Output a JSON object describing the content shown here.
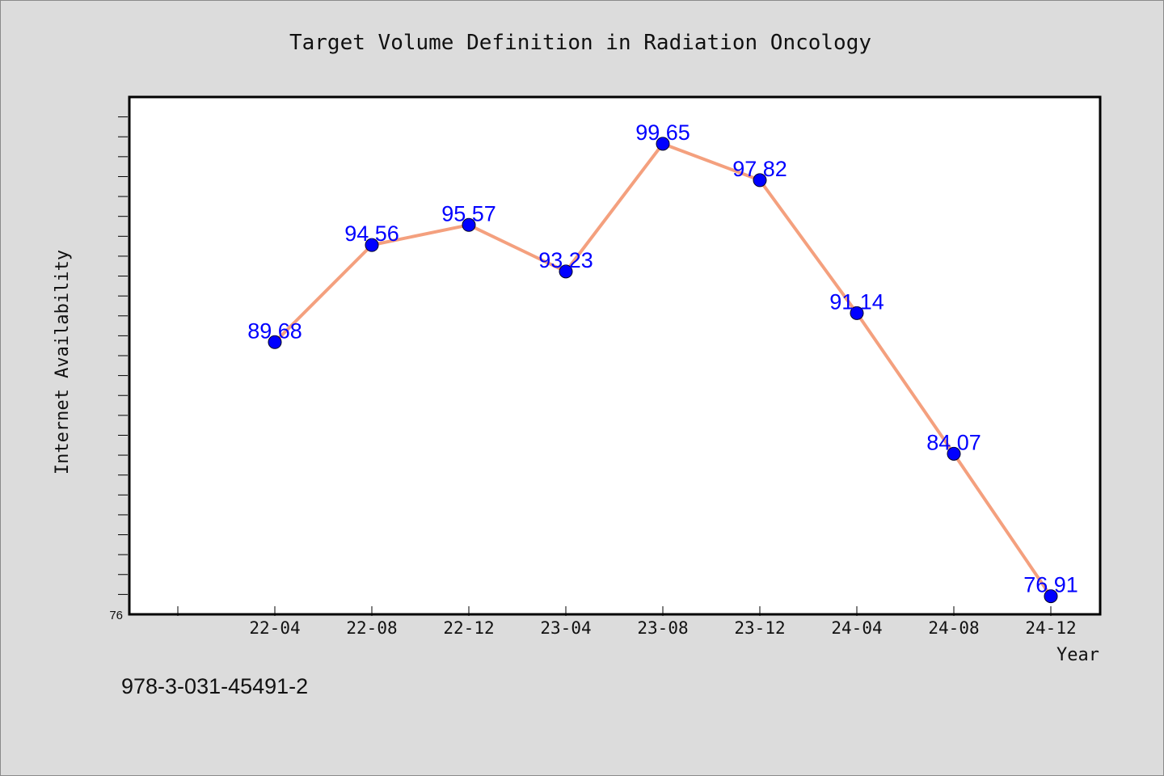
{
  "footer_text": "978-3-031-45491-2",
  "chart_data": {
    "type": "line",
    "title": "Target Volume Definition in Radiation Oncology",
    "xlabel": "Year",
    "ylabel": "Internet Availability",
    "categories": [
      "22-04",
      "22-08",
      "22-12",
      "23-04",
      "23-08",
      "23-12",
      "24-04",
      "24-08",
      "24-12"
    ],
    "series": [
      {
        "values": [
          89.68,
          94.56,
          95.57,
          93.23,
          99.65,
          97.82,
          91.14,
          84.07,
          76.91
        ]
      }
    ],
    "ylim": [
      76,
      102
    ],
    "ytick_labels": [
      "76"
    ],
    "grid": false,
    "colors": {
      "line": "#f4a07e",
      "marker": "#0000ff",
      "label": "#0000ff",
      "plot_bg": "#ffffff",
      "page_bg": "#dcdcdc"
    }
  }
}
